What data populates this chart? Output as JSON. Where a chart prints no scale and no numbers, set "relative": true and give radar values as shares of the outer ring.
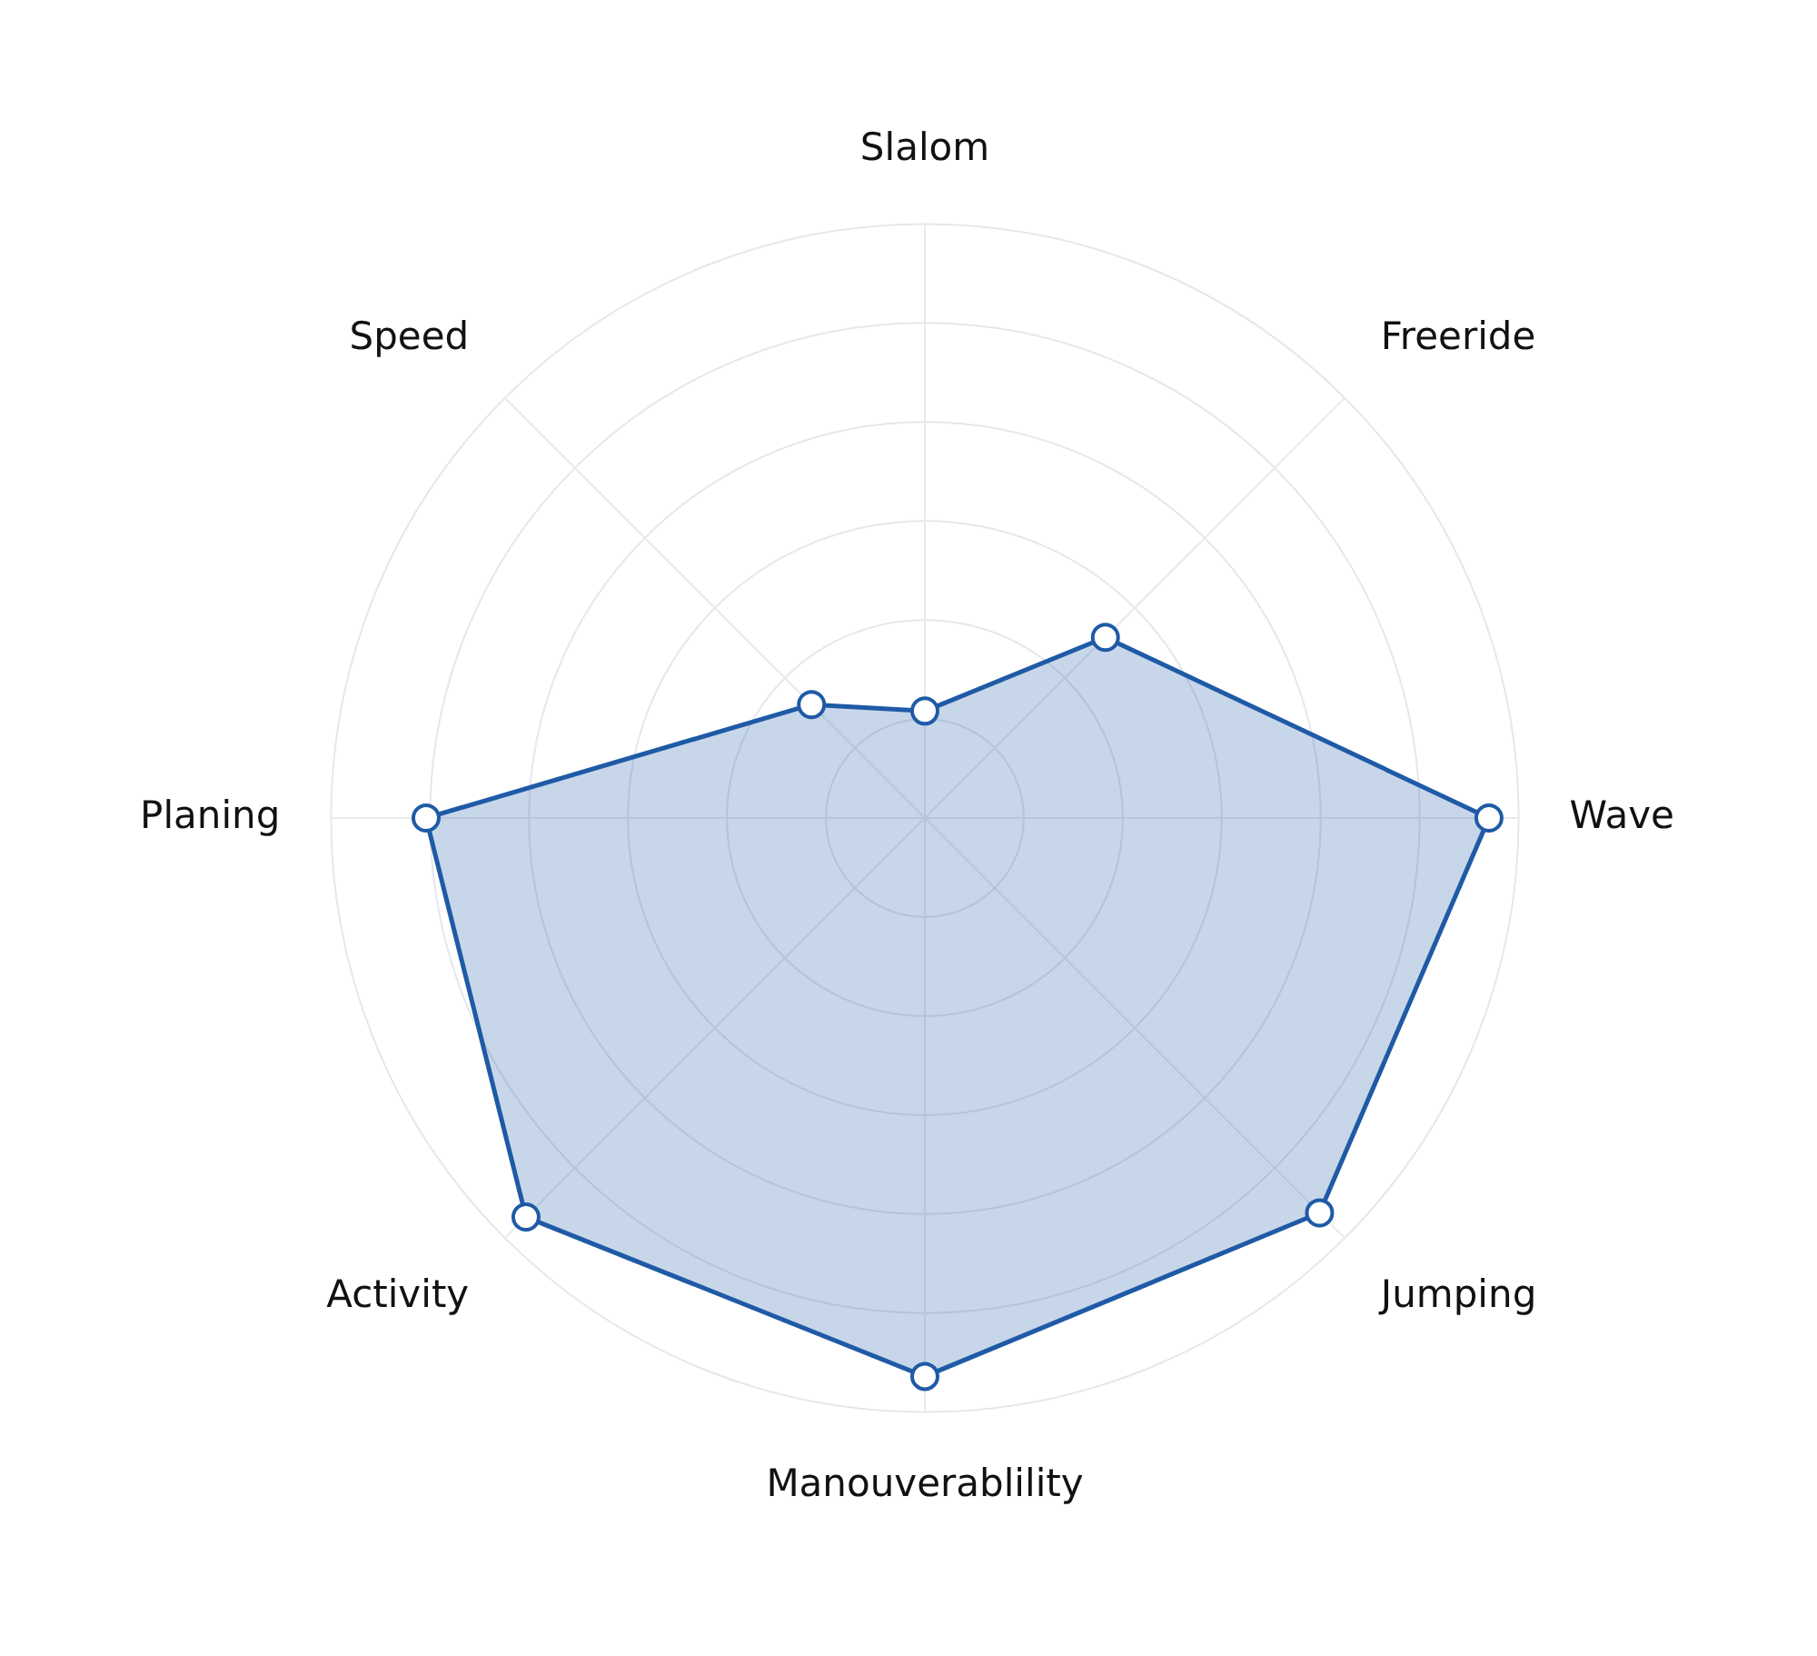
{
  "chart_data": {
    "type": "radar",
    "relative": true,
    "categories": [
      "Slalom",
      "Freeride",
      "Wave",
      "Jumping",
      "Manouverablility",
      "Activity",
      "Planing",
      "Speed"
    ],
    "series": [
      {
        "color": "#1f5aa6",
        "values": [
          0.18,
          0.43,
          0.95,
          0.94,
          0.94,
          0.95,
          0.84,
          0.27
        ]
      }
    ],
    "grid": true,
    "marker": "circle",
    "legend": false
  }
}
